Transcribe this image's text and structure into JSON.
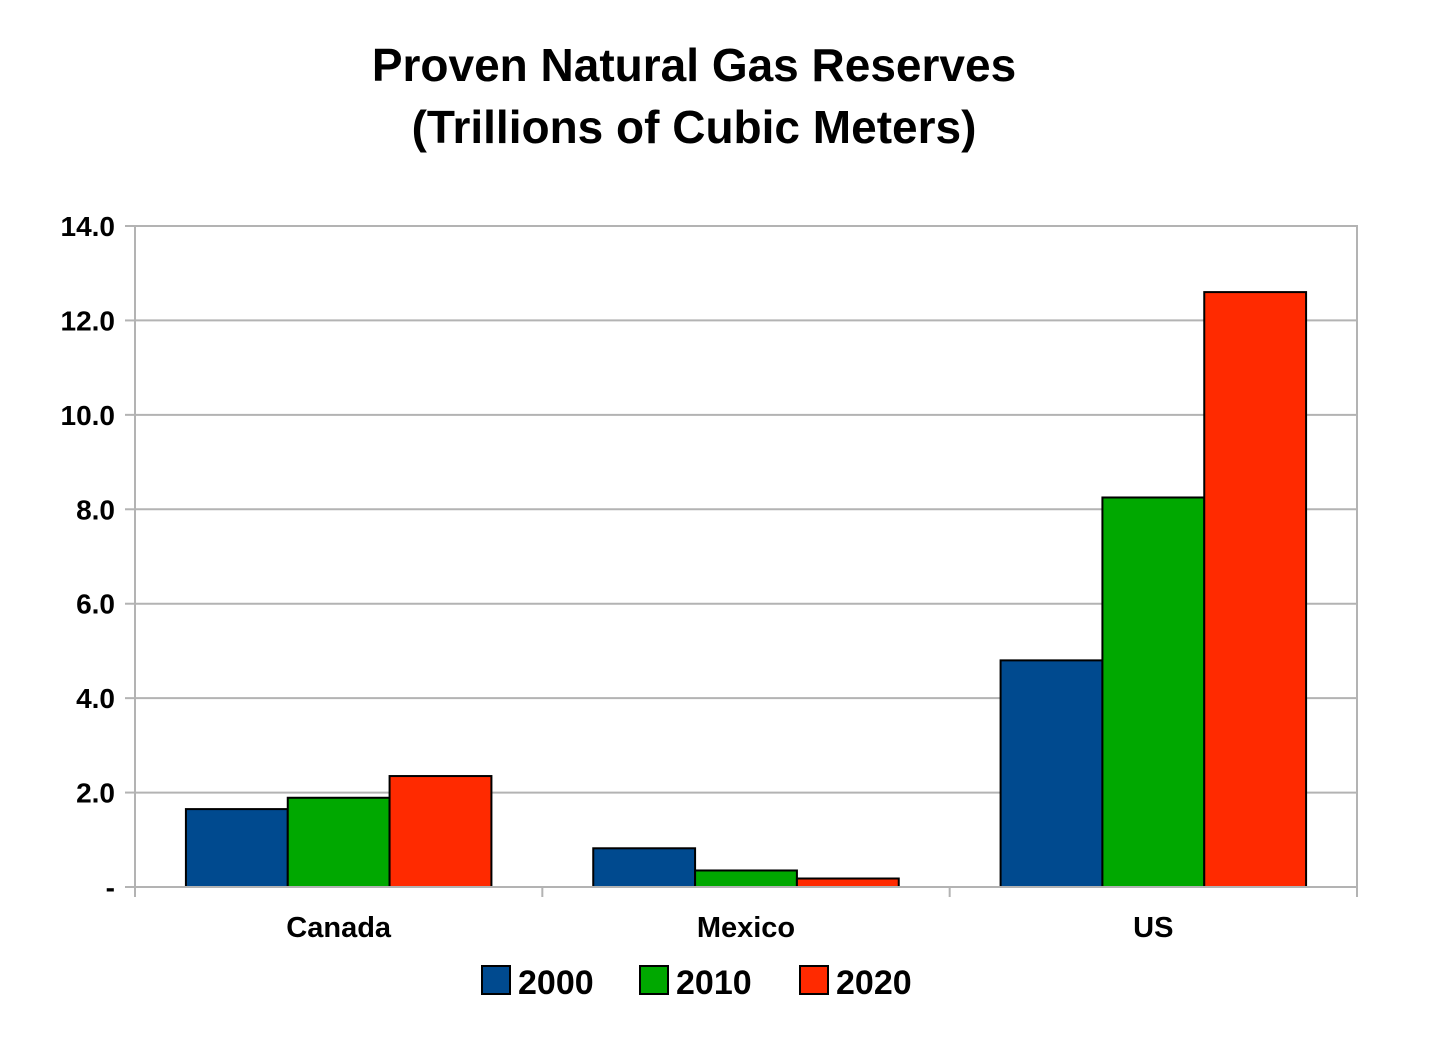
{
  "chart_data": {
    "type": "bar",
    "title": [
      "Proven Natural Gas Reserves",
      "(Trillions of Cubic Meters)"
    ],
    "xlabel": "",
    "ylabel": "",
    "categories": [
      "Canada",
      "Mexico",
      "US"
    ],
    "series": [
      {
        "name": "2000",
        "color": "#004A8F",
        "values": [
          1.65,
          0.82,
          4.8
        ]
      },
      {
        "name": "2010",
        "color": "#00A800",
        "values": [
          1.89,
          0.35,
          8.25
        ]
      },
      {
        "name": "2020",
        "color": "#FF2A00",
        "values": [
          2.35,
          0.18,
          12.6
        ]
      }
    ],
    "ylim": [
      0,
      14
    ],
    "yticks": [
      0,
      2,
      4,
      6,
      8,
      10,
      12,
      14
    ],
    "ytick_labels": [
      "-",
      "2.0",
      "4.0",
      "6.0",
      "8.0",
      "10.0",
      "12.0",
      "14.0"
    ],
    "grid": true,
    "legend": "bottom-center"
  }
}
